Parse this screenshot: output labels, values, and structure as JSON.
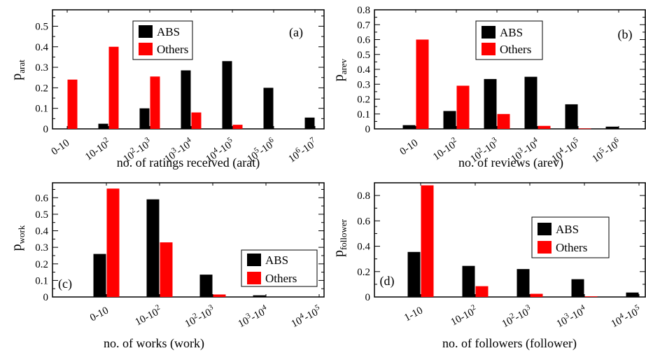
{
  "colors": {
    "ABS": "#000000",
    "Others": "#ff0000"
  },
  "chart_data": [
    {
      "id": "a",
      "type": "bar",
      "panel_tag": "(a)",
      "ylabel": "p",
      "ylabel_sub": "arat",
      "xlabel": "no. of ratings received (arat)",
      "ylim": [
        0,
        0.58
      ],
      "yticks": [
        "0",
        "0.1",
        "0.2",
        "0.3",
        "0.4",
        "0.5"
      ],
      "ytick_values": [
        0,
        0.1,
        0.2,
        0.3,
        0.4,
        0.5
      ],
      "categories": [
        {
          "base": "0-10",
          "parts": []
        },
        {
          "base": "10-10",
          "parts": [
            [
              "sup",
              "2"
            ]
          ]
        },
        {
          "base": "10",
          "parts": [
            [
              "sup",
              "2"
            ],
            [
              "txt",
              "-10"
            ],
            [
              "sup",
              "3"
            ]
          ]
        },
        {
          "base": "10",
          "parts": [
            [
              "sup",
              "3"
            ],
            [
              "txt",
              "-10"
            ],
            [
              "sup",
              "4"
            ]
          ]
        },
        {
          "base": "10",
          "parts": [
            [
              "sup",
              "4"
            ],
            [
              "txt",
              "-10"
            ],
            [
              "sup",
              "5"
            ]
          ]
        },
        {
          "base": "10",
          "parts": [
            [
              "sup",
              "5"
            ],
            [
              "txt",
              "-10"
            ],
            [
              "sup",
              "6"
            ]
          ]
        },
        {
          "base": "10",
          "parts": [
            [
              "sup",
              "6"
            ],
            [
              "txt",
              "-10"
            ],
            [
              "sup",
              "7"
            ]
          ]
        }
      ],
      "series": [
        {
          "name": "ABS",
          "values": [
            0,
            0.025,
            0.1,
            0.285,
            0.33,
            0.2,
            0.055
          ]
        },
        {
          "name": "Others",
          "values": [
            0.24,
            0.4,
            0.255,
            0.08,
            0.02,
            0,
            0
          ]
        }
      ],
      "legend": "top-center"
    },
    {
      "id": "b",
      "type": "bar",
      "panel_tag": "(b)",
      "ylabel": "p",
      "ylabel_sub": "arev",
      "xlabel": "no. of reviews (arev)",
      "ylim": [
        0,
        0.8
      ],
      "yticks": [
        "0",
        "0.1",
        "0.2",
        "0.3",
        "0.4",
        "0.5",
        "0.6",
        "0.7",
        "0.8"
      ],
      "ytick_values": [
        0,
        0.1,
        0.2,
        0.3,
        0.4,
        0.5,
        0.6,
        0.7,
        0.8
      ],
      "categories": [
        {
          "base": "0-10",
          "parts": []
        },
        {
          "base": "10-10",
          "parts": [
            [
              "sup",
              "2"
            ]
          ]
        },
        {
          "base": "10",
          "parts": [
            [
              "sup",
              "2"
            ],
            [
              "txt",
              "-10"
            ],
            [
              "sup",
              "3"
            ]
          ]
        },
        {
          "base": "10",
          "parts": [
            [
              "sup",
              "3"
            ],
            [
              "txt",
              "-10"
            ],
            [
              "sup",
              "4"
            ]
          ]
        },
        {
          "base": "10",
          "parts": [
            [
              "sup",
              "4"
            ],
            [
              "txt",
              "-10"
            ],
            [
              "sup",
              "5"
            ]
          ]
        },
        {
          "base": "10",
          "parts": [
            [
              "sup",
              "5"
            ],
            [
              "txt",
              "-10"
            ],
            [
              "sup",
              "6"
            ]
          ]
        }
      ],
      "series": [
        {
          "name": "ABS",
          "values": [
            0.025,
            0.12,
            0.335,
            0.35,
            0.165,
            0.015
          ]
        },
        {
          "name": "Others",
          "values": [
            0.6,
            0.29,
            0.1,
            0.02,
            0.003,
            0
          ]
        }
      ],
      "legend": "top-right"
    },
    {
      "id": "c",
      "type": "bar",
      "panel_tag": "(c)",
      "ylabel": "p",
      "ylabel_sub": "work",
      "xlabel": "no. of works (work)",
      "ylim": [
        0,
        0.69
      ],
      "yticks": [
        "0",
        "0.1",
        "0.2",
        "0.3",
        "0.4",
        "0.5",
        "0.6"
      ],
      "ytick_values": [
        0,
        0.1,
        0.2,
        0.3,
        0.4,
        0.5,
        0.6
      ],
      "categories": [
        {
          "base": "0-10",
          "parts": []
        },
        {
          "base": "10-10",
          "parts": [
            [
              "sup",
              "2"
            ]
          ]
        },
        {
          "base": "10",
          "parts": [
            [
              "sup",
              "2"
            ],
            [
              "txt",
              "-10"
            ],
            [
              "sup",
              "3"
            ]
          ]
        },
        {
          "base": "10",
          "parts": [
            [
              "sup",
              "3"
            ],
            [
              "txt",
              "-10"
            ],
            [
              "sup",
              "4"
            ]
          ]
        },
        {
          "base": "10",
          "parts": [
            [
              "sup",
              "4"
            ],
            [
              "txt",
              "-10"
            ],
            [
              "sup",
              "5"
            ]
          ]
        }
      ],
      "series": [
        {
          "name": "ABS",
          "values": [
            0.26,
            0.59,
            0.135,
            0.01,
            0
          ]
        },
        {
          "name": "Others",
          "values": [
            0.655,
            0.33,
            0.015,
            0,
            0
          ]
        }
      ],
      "legend": "bottom-right"
    },
    {
      "id": "d",
      "type": "bar",
      "panel_tag": "(d)",
      "ylabel": "p",
      "ylabel_sub": "follower",
      "xlabel": "no. of followers (follower)",
      "ylim": [
        0,
        0.9
      ],
      "yticks": [
        "0",
        "0.2",
        "0.4",
        "0.6",
        "0.8"
      ],
      "ytick_values": [
        0,
        0.2,
        0.4,
        0.6,
        0.8
      ],
      "categories": [
        {
          "base": "1-10",
          "parts": []
        },
        {
          "base": "10-10",
          "parts": [
            [
              "sup",
              "2"
            ]
          ]
        },
        {
          "base": "10",
          "parts": [
            [
              "sup",
              "2"
            ],
            [
              "txt",
              "-10"
            ],
            [
              "sup",
              "3"
            ]
          ]
        },
        {
          "base": "10",
          "parts": [
            [
              "sup",
              "3"
            ],
            [
              "txt",
              "-10"
            ],
            [
              "sup",
              "4"
            ]
          ]
        },
        {
          "base": "10",
          "parts": [
            [
              "sup",
              "4"
            ],
            [
              "txt",
              "-10"
            ],
            [
              "sup",
              "5"
            ]
          ]
        }
      ],
      "series": [
        {
          "name": "ABS",
          "values": [
            0.355,
            0.245,
            0.22,
            0.14,
            0.035
          ]
        },
        {
          "name": "Others",
          "values": [
            0.88,
            0.085,
            0.025,
            0.005,
            0
          ]
        }
      ],
      "legend": "center-right"
    }
  ]
}
